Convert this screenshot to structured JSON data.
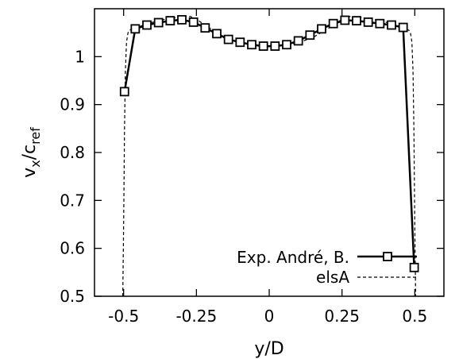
{
  "chart_data": {
    "type": "line",
    "title": "",
    "xlabel": "y/D",
    "ylabel": "v",
    "ylabel_sub1": "x",
    "ylabel_sep": "/c",
    "ylabel_sub2": "ref",
    "xlim": [
      -0.6,
      0.6
    ],
    "ylim": [
      0.5,
      1.1
    ],
    "xticks": [
      -0.5,
      -0.25,
      0,
      0.25,
      0.5
    ],
    "xtick_labels": [
      "-0.5",
      "-0.25",
      "0",
      "0.25",
      "0.5"
    ],
    "yticks": [
      0.5,
      0.6,
      0.7,
      0.8,
      0.9,
      1.0
    ],
    "ytick_labels": [
      "0.5",
      "0.6",
      "0.7",
      "0.8",
      "0.9",
      "1"
    ],
    "grid": false,
    "legend_position": "bottom-right",
    "series": [
      {
        "name": "Exp. André, B.",
        "style": "solid-square-markers",
        "color": "#000000",
        "x": [
          -0.497,
          -0.46,
          -0.42,
          -0.38,
          -0.34,
          -0.3,
          -0.26,
          -0.22,
          -0.18,
          -0.14,
          -0.1,
          -0.06,
          -0.02,
          0.02,
          0.06,
          0.1,
          0.14,
          0.18,
          0.22,
          0.26,
          0.3,
          0.34,
          0.38,
          0.42,
          0.46,
          0.498
        ],
        "y": [
          0.927,
          1.058,
          1.066,
          1.071,
          1.075,
          1.077,
          1.072,
          1.06,
          1.048,
          1.036,
          1.03,
          1.025,
          1.022,
          1.022,
          1.025,
          1.033,
          1.045,
          1.058,
          1.069,
          1.076,
          1.075,
          1.072,
          1.069,
          1.066,
          1.061,
          0.56
        ]
      },
      {
        "name": "elsA",
        "style": "dashed",
        "color": "#000000",
        "x": [
          -0.503,
          -0.5,
          -0.497,
          -0.494,
          -0.49,
          -0.485,
          -0.48,
          -0.47,
          -0.45,
          -0.4,
          -0.35,
          -0.3,
          -0.27,
          -0.25,
          -0.2,
          -0.15,
          -0.1,
          -0.05,
          0.0,
          0.05,
          0.1,
          0.15,
          0.2,
          0.25,
          0.27,
          0.3,
          0.35,
          0.4,
          0.45,
          0.47,
          0.48,
          0.485,
          0.49,
          0.494,
          0.497,
          0.5,
          0.503
        ],
        "y": [
          0.5,
          0.65,
          0.85,
          0.97,
          1.03,
          1.05,
          1.055,
          1.058,
          1.062,
          1.072,
          1.079,
          1.083,
          1.084,
          1.078,
          1.058,
          1.04,
          1.029,
          1.024,
          1.022,
          1.024,
          1.029,
          1.04,
          1.058,
          1.078,
          1.084,
          1.083,
          1.079,
          1.072,
          1.062,
          1.058,
          1.055,
          1.05,
          1.03,
          0.97,
          0.85,
          0.65,
          0.5
        ]
      }
    ]
  }
}
